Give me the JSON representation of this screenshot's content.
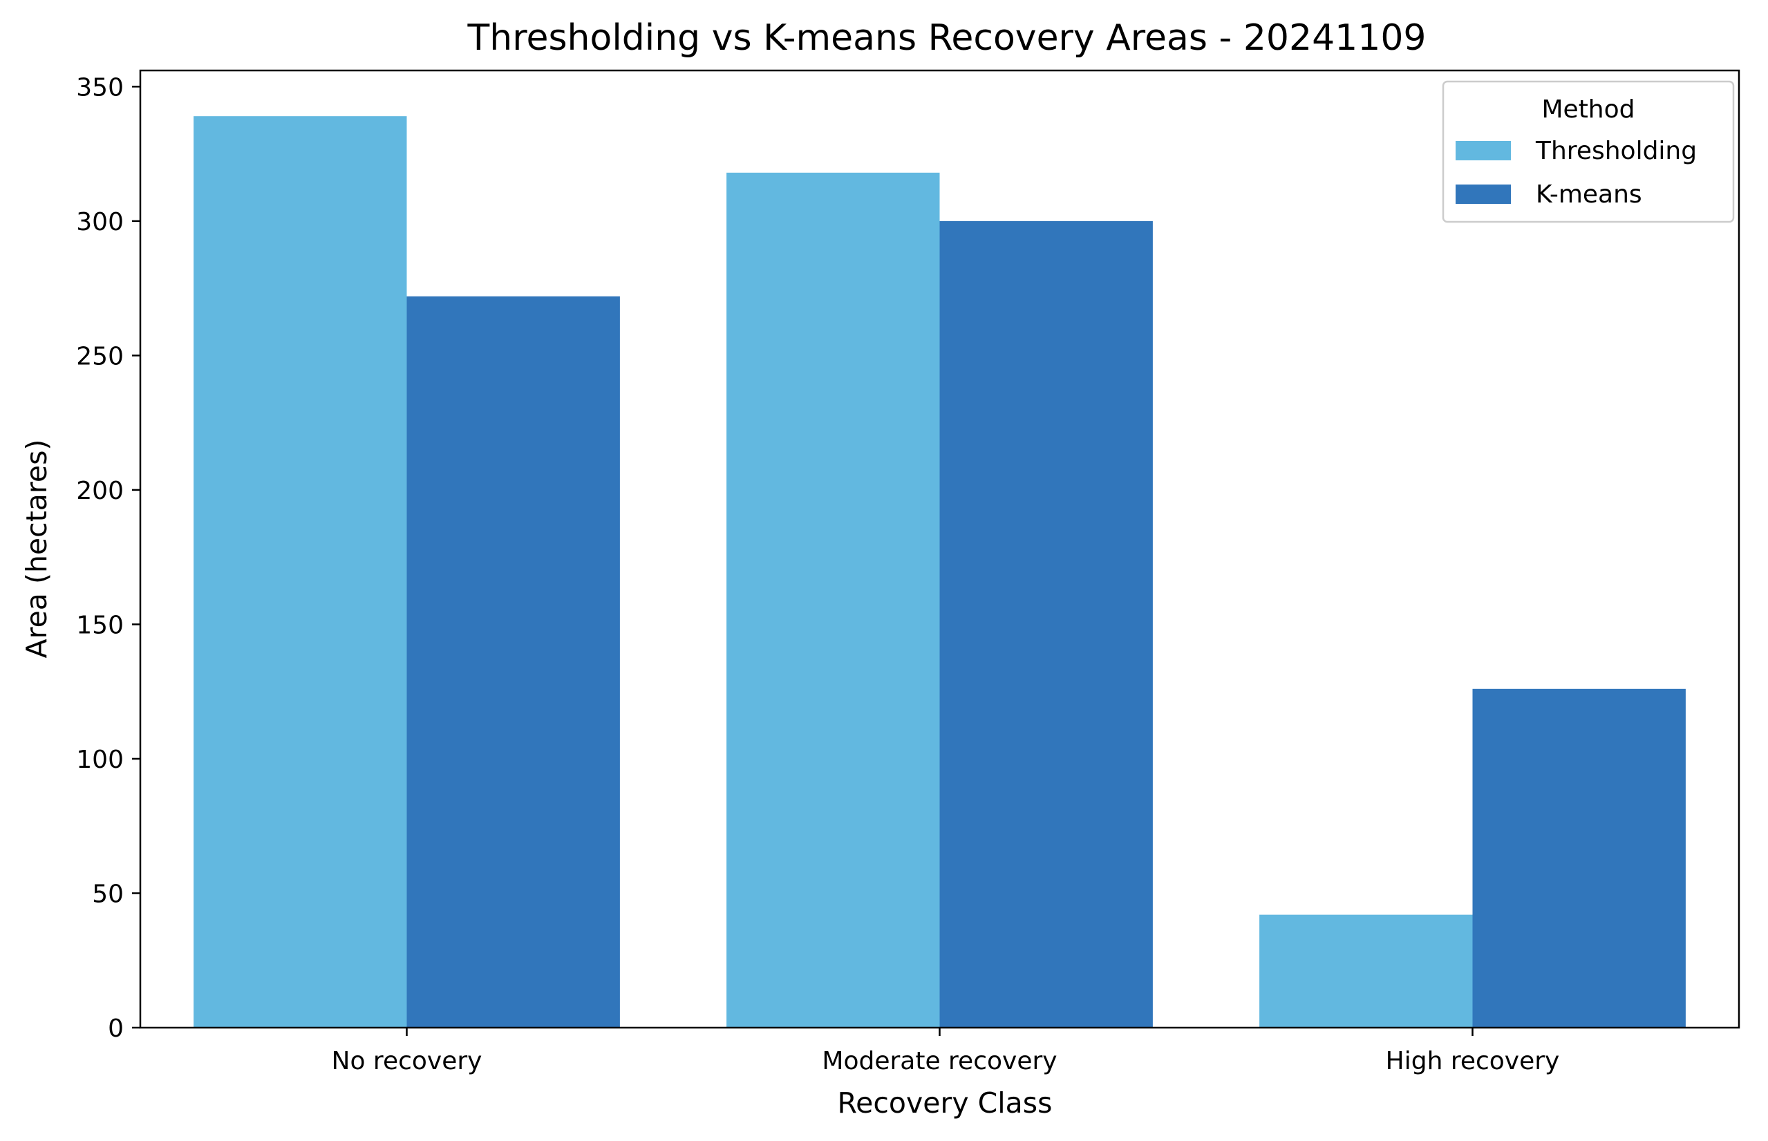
{
  "chart_data": {
    "type": "bar",
    "title": "Thresholding vs K-means Recovery Areas - 20241109",
    "xlabel": "Recovery Class",
    "ylabel": "Area (hectares)",
    "categories": [
      "No recovery",
      "Moderate recovery",
      "High recovery"
    ],
    "series": [
      {
        "name": "Thresholding",
        "values": [
          339,
          318,
          42
        ],
        "color": "#62B8E0"
      },
      {
        "name": "K-means",
        "values": [
          272,
          300,
          126
        ],
        "color": "#3176BB"
      }
    ],
    "ylim": [
      0,
      356
    ],
    "yticks": [
      0,
      50,
      100,
      150,
      200,
      250,
      300,
      350
    ],
    "legend": {
      "title": "Method",
      "placement": "top-right"
    },
    "grid": false
  }
}
